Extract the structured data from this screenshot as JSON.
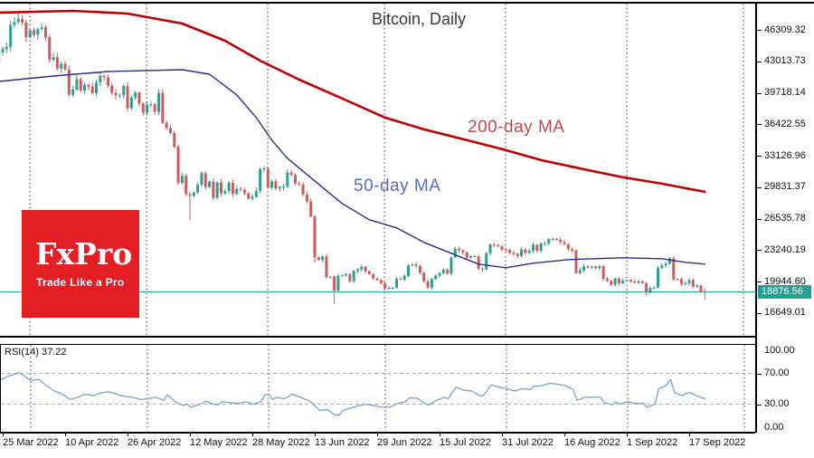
{
  "title": "Bitcoin, Daily",
  "logo": {
    "brand": "FxPro",
    "tagline": "Trade Like a Pro",
    "bg_color": "#e31e25"
  },
  "annotations": {
    "ma200_label": "200-day MA",
    "ma50_label": "50-day MA",
    "rsi_label": "RSI(14) 37.22"
  },
  "price_axis": {
    "tick_labels": [
      "46309.32",
      "43013.73",
      "39718.14",
      "36422.55",
      "33126.96",
      "29831.37",
      "26535.78",
      "23240.19",
      "19944.60",
      "16649.01"
    ],
    "current_price_label": "18876.56"
  },
  "rsi_axis": {
    "tick_labels": [
      "100.00",
      "70.00",
      "30.00",
      "0.00"
    ]
  },
  "date_axis": {
    "labels": [
      {
        "text": "25 Mar 2022",
        "day": 1
      },
      {
        "text": "10 Apr 2022",
        "day": 17
      },
      {
        "text": "26 Apr 2022",
        "day": 33
      },
      {
        "text": "12 May 2022",
        "day": 49
      },
      {
        "text": "28 May 2022",
        "day": 65
      },
      {
        "text": "13 Jun 2022",
        "day": 81
      },
      {
        "text": "29 Jun 2022",
        "day": 97
      },
      {
        "text": "15 Jul 2022",
        "day": 113
      },
      {
        "text": "31 Jul 2022",
        "day": 129
      },
      {
        "text": "16 Aug 2022",
        "day": 145
      },
      {
        "text": "1 Sep 2022",
        "day": 161
      },
      {
        "text": "17 Sep 2022",
        "day": 177
      }
    ]
  },
  "colors": {
    "bull": "#2f9e90",
    "bear": "#cd5c5c",
    "ma200": "#c00000",
    "ma50": "#2b2b94",
    "price_line": "#2aa7a0",
    "price_tag_bg": "#26a096",
    "rsi_line": "#76a3cf",
    "rsi_level": "#b3b3b3",
    "grid": "#3a3a3a",
    "text": "#111111"
  },
  "chart_data": {
    "type": "candlestick",
    "title": "Bitcoin, Daily",
    "symbol": "Bitcoin",
    "timeframe": "Daily",
    "current_price": 18876.56,
    "y_axis_range": [
      15000,
      48500
    ],
    "y_tick_values": [
      46309.32,
      43013.73,
      39718.14,
      36422.55,
      33126.96,
      29831.37,
      26535.78,
      23240.19,
      19944.6,
      16649.01
    ],
    "x_tick_labels": [
      "25 Mar 2022",
      "10 Apr 2022",
      "26 Apr 2022",
      "12 May 2022",
      "28 May 2022",
      "13 Jun 2022",
      "29 Jun 2022",
      "15 Jul 2022",
      "31 Jul 2022",
      "16 Aug 2022",
      "1 Sep 2022",
      "17 Sep 2022"
    ],
    "grid": "vertical-dashed-monthly",
    "first_open": 42892,
    "closes": [
      43960,
      44313,
      44539,
      46821,
      47128,
      47465,
      47078,
      45539,
      46283,
      45811,
      46407,
      46580,
      45511,
      43170,
      43444,
      42252,
      42757,
      42158,
      39530,
      40074,
      41147,
      39942,
      40552,
      40378,
      39678,
      40801,
      41493,
      41358,
      40480,
      39711,
      39450,
      39469,
      40426,
      38112,
      39235,
      39742,
      38596,
      37630,
      38469,
      38525,
      37728,
      39690,
      36575,
      36040,
      35501,
      34059,
      30273,
      31022,
      29103,
      28936,
      29283,
      30087,
      31305,
      29862,
      30425,
      28720,
      30314,
      29200,
      29432,
      30293,
      29109,
      29655,
      29562,
      29201,
      28627,
      28814,
      29445,
      31726,
      31792,
      29799,
      30452,
      29700,
      29864,
      29919,
      31373,
      31125,
      30205,
      30111,
      29083,
      28360,
      26762,
      22487,
      22206,
      22572,
      20381,
      20471,
      19017,
      20553,
      20594,
      20710,
      19987,
      21085,
      21231,
      21502,
      21027,
      20735,
      20280,
      20104,
      19784,
      19242,
      19297,
      19314,
      20235,
      20175,
      20548,
      21637,
      21731,
      21592,
      20860,
      19970,
      19323,
      20212,
      20569,
      20836,
      21190,
      20788,
      22485,
      23389,
      23231,
      22987,
      22451,
      22608,
      22582,
      21311,
      21234,
      22930,
      23843,
      23773,
      23644,
      23293,
      23271,
      22978,
      22846,
      22630,
      23312,
      22954,
      23175,
      23809,
      23164,
      23948,
      23957,
      24402,
      24424,
      24312,
      24095,
      23854,
      23342,
      23191,
      20834,
      21139,
      21516,
      21398,
      21529,
      21368,
      21559,
      20241,
      20037,
      19616,
      20297,
      19796,
      20050,
      20127,
      19952,
      19832,
      19986,
      19794,
      18790,
      19290,
      19320,
      21360,
      21649,
      21826,
      22395,
      20173,
      20226,
      19701,
      19772,
      20113,
      19419,
      19544,
      18890,
      18876.56
    ],
    "wick_overrides": {
      "5": {
        "high": 48150
      },
      "49": {
        "low": 26350
      },
      "81": {
        "low": 21926
      },
      "86": {
        "low": 17622
      },
      "166": {
        "low": 18540
      },
      "181": {
        "low": 18100,
        "high": 19250
      }
    },
    "series": [
      {
        "name": "200-day MA",
        "points": [
          [
            0,
            48108
          ],
          [
            19,
            48298
          ],
          [
            33,
            48014
          ],
          [
            47,
            46972
          ],
          [
            58,
            45173
          ],
          [
            67,
            43089
          ],
          [
            77,
            41101
          ],
          [
            86,
            39491
          ],
          [
            99,
            37123
          ],
          [
            109,
            35892
          ],
          [
            121,
            34661
          ],
          [
            130,
            33714
          ],
          [
            139,
            32672
          ],
          [
            151,
            31630
          ],
          [
            160,
            30873
          ],
          [
            170,
            30210
          ],
          [
            176,
            29736
          ],
          [
            181,
            29357
          ]
        ]
      },
      {
        "name": "50-day MA",
        "points": [
          [
            0,
            40911
          ],
          [
            14,
            41479
          ],
          [
            28,
            41953
          ],
          [
            47,
            42142
          ],
          [
            54,
            41669
          ],
          [
            61,
            39491
          ],
          [
            66,
            37123
          ],
          [
            70,
            34756
          ],
          [
            74,
            32862
          ],
          [
            81,
            30494
          ],
          [
            88,
            28127
          ],
          [
            95,
            26422
          ],
          [
            102,
            25570
          ],
          [
            109,
            24055
          ],
          [
            116,
            22919
          ],
          [
            123,
            21782
          ],
          [
            130,
            21403
          ],
          [
            137,
            21877
          ],
          [
            146,
            22256
          ],
          [
            160,
            22445
          ],
          [
            170,
            22350
          ],
          [
            176,
            21971
          ],
          [
            181,
            21782
          ]
        ]
      }
    ],
    "rsi": {
      "period": 14,
      "current": 37.22,
      "levels": [
        70,
        30
      ],
      "range": [
        0,
        100
      ],
      "points": [
        [
          0,
          61
        ],
        [
          2,
          66
        ],
        [
          5,
          71
        ],
        [
          7,
          64
        ],
        [
          8,
          61
        ],
        [
          10,
          62
        ],
        [
          12,
          54
        ],
        [
          14,
          47
        ],
        [
          16,
          43
        ],
        [
          18,
          36
        ],
        [
          20,
          39
        ],
        [
          22,
          43
        ],
        [
          24,
          41
        ],
        [
          26,
          45
        ],
        [
          28,
          46
        ],
        [
          30,
          43
        ],
        [
          32,
          40
        ],
        [
          34,
          39
        ],
        [
          36,
          36
        ],
        [
          38,
          37
        ],
        [
          40,
          39
        ],
        [
          42,
          35
        ],
        [
          43,
          42
        ],
        [
          45,
          33
        ],
        [
          47,
          28
        ],
        [
          48,
          30
        ],
        [
          49,
          26
        ],
        [
          51,
          29
        ],
        [
          53,
          34
        ],
        [
          54,
          31
        ],
        [
          56,
          29
        ],
        [
          57,
          33
        ],
        [
          59,
          32
        ],
        [
          61,
          31
        ],
        [
          63,
          33
        ],
        [
          65,
          30
        ],
        [
          67,
          33
        ],
        [
          68,
          42
        ],
        [
          69,
          43
        ],
        [
          70,
          36
        ],
        [
          71,
          39
        ],
        [
          73,
          37
        ],
        [
          75,
          43
        ],
        [
          77,
          39
        ],
        [
          79,
          35
        ],
        [
          80,
          32
        ],
        [
          81,
          27
        ],
        [
          82,
          22
        ],
        [
          84,
          23
        ],
        [
          86,
          16
        ],
        [
          87,
          15.5
        ],
        [
          88,
          22
        ],
        [
          90,
          25
        ],
        [
          92,
          28
        ],
        [
          94,
          30
        ],
        [
          96,
          28
        ],
        [
          98,
          26
        ],
        [
          100,
          26
        ],
        [
          102,
          31
        ],
        [
          104,
          33
        ],
        [
          105,
          38
        ],
        [
          107,
          38
        ],
        [
          109,
          31
        ],
        [
          110,
          29
        ],
        [
          112,
          35
        ],
        [
          114,
          39
        ],
        [
          115,
          37
        ],
        [
          116,
          45
        ],
        [
          117,
          52
        ],
        [
          119,
          48
        ],
        [
          121,
          47
        ],
        [
          123,
          41
        ],
        [
          124,
          41
        ],
        [
          125,
          48
        ],
        [
          126,
          55
        ],
        [
          128,
          52
        ],
        [
          130,
          50
        ],
        [
          132,
          47
        ],
        [
          134,
          50
        ],
        [
          136,
          49
        ],
        [
          137,
          53
        ],
        [
          139,
          54
        ],
        [
          141,
          57
        ],
        [
          143,
          56
        ],
        [
          145,
          54
        ],
        [
          147,
          49
        ],
        [
          148,
          35
        ],
        [
          150,
          39
        ],
        [
          152,
          39
        ],
        [
          154,
          39
        ],
        [
          155,
          32
        ],
        [
          157,
          29
        ],
        [
          158,
          33
        ],
        [
          159,
          30
        ],
        [
          160,
          32
        ],
        [
          161,
          33
        ],
        [
          163,
          31
        ],
        [
          165,
          31
        ],
        [
          166,
          26
        ],
        [
          168,
          30
        ],
        [
          169,
          50
        ],
        [
          171,
          55
        ],
        [
          172,
          62
        ],
        [
          173,
          45
        ],
        [
          175,
          41
        ],
        [
          176,
          44
        ],
        [
          177,
          45
        ],
        [
          179,
          40
        ],
        [
          180,
          38
        ],
        [
          181,
          37.22
        ]
      ]
    },
    "month_grid_days": [
      8,
      38,
      69,
      99,
      130,
      161,
      191
    ]
  }
}
